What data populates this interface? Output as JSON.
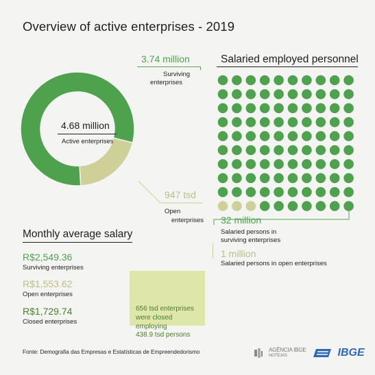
{
  "title": "Overview of active enterprises - 2019",
  "donut": {
    "center_value": "4.68 million",
    "center_label": "Active enterprises",
    "surviving_value": "3.74 million",
    "surviving_label_l1": "Surviving",
    "surviving_label_l2": "enterprises",
    "open_value": "947 tsd",
    "open_label_l1": "Open",
    "open_label_l2": "enterprises"
  },
  "personnel": {
    "title": "Salaried employed personnel",
    "surviving_value": "32 million",
    "surviving_label_l1": "Salaried persons in",
    "surviving_label_l2": "surviving enterprises",
    "open_value": "1 million",
    "open_label": "Salaried persons in open enterprises"
  },
  "salary": {
    "title": "Monthly average salary",
    "items": [
      {
        "value": "R$2,549.36",
        "label": "Surviving enterprises"
      },
      {
        "value": "R$1,553.62",
        "label": "Open enterprises"
      },
      {
        "value": "R$1,729.74",
        "label": "Closed enterprises"
      }
    ]
  },
  "closed": {
    "line1": "656 tsd enterprises",
    "line2": "were closed",
    "line3": "employing",
    "line4": "438.9 tsd persons"
  },
  "source": "Fonte: Demografia das Empresas e Estatísticas de Empreendedorismo",
  "logos": {
    "agencia_l1": "AGÊNCIA IBGE",
    "agencia_l2": "NOTÍCIAS",
    "ibge": "IBGE"
  },
  "colors": {
    "green": "#4ea24e",
    "tan": "#cfcf98",
    "text": "#1e1e1e",
    "box": "#dfe6aa",
    "ibge_blue": "#2f68b4"
  },
  "chart_data": [
    {
      "type": "pie",
      "style": "donut",
      "categories": [
        "Surviving enterprises",
        "Open enterprises"
      ],
      "values": [
        3.74,
        0.947
      ],
      "unit": "million",
      "total": 4.68,
      "colors": [
        "#4ea24e",
        "#cfcf98"
      ]
    },
    {
      "type": "waffle",
      "title": "Salaried employed personnel",
      "grid": [
        10,
        10
      ],
      "categories": [
        "Salaried persons in surviving enterprises",
        "Salaried persons in open enterprises"
      ],
      "values": [
        97,
        3
      ],
      "colors": [
        "#4ea24e",
        "#cfcf98"
      ]
    }
  ]
}
